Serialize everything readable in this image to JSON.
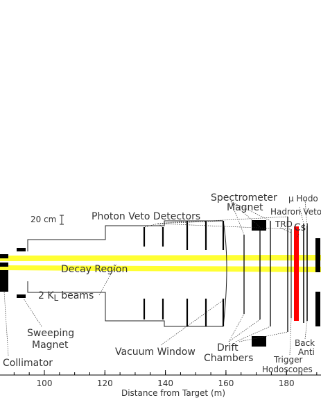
{
  "labels": {
    "spectrometer_magnet": [
      "Spectrometer",
      "Magnet"
    ],
    "mu_hodo": "μ Hodo",
    "hadron_veto": "Hadron Veto",
    "trd": "TRD",
    "csi": "CsI",
    "photon_veto": "Photon Veto Detectors",
    "scale": "20 cm",
    "decay_region": "Decay Region",
    "beams": {
      "prefix": "2 K",
      "subscript": "L",
      "suffix": "beams"
    },
    "sweeping_magnet": [
      "Sweeping",
      "Magnet"
    ],
    "collimator": "Collimator",
    "vacuum_window": "Vacuum Window",
    "drift_chambers": [
      "Drift",
      "Chambers"
    ],
    "trigger_hodoscopes": [
      "Trigger",
      "Hodoscopes"
    ],
    "back_anti": [
      "Back",
      "Anti"
    ]
  },
  "axis": {
    "title": "Distance from Target (m)",
    "ticks": [
      100,
      120,
      140,
      160,
      180
    ]
  }
}
